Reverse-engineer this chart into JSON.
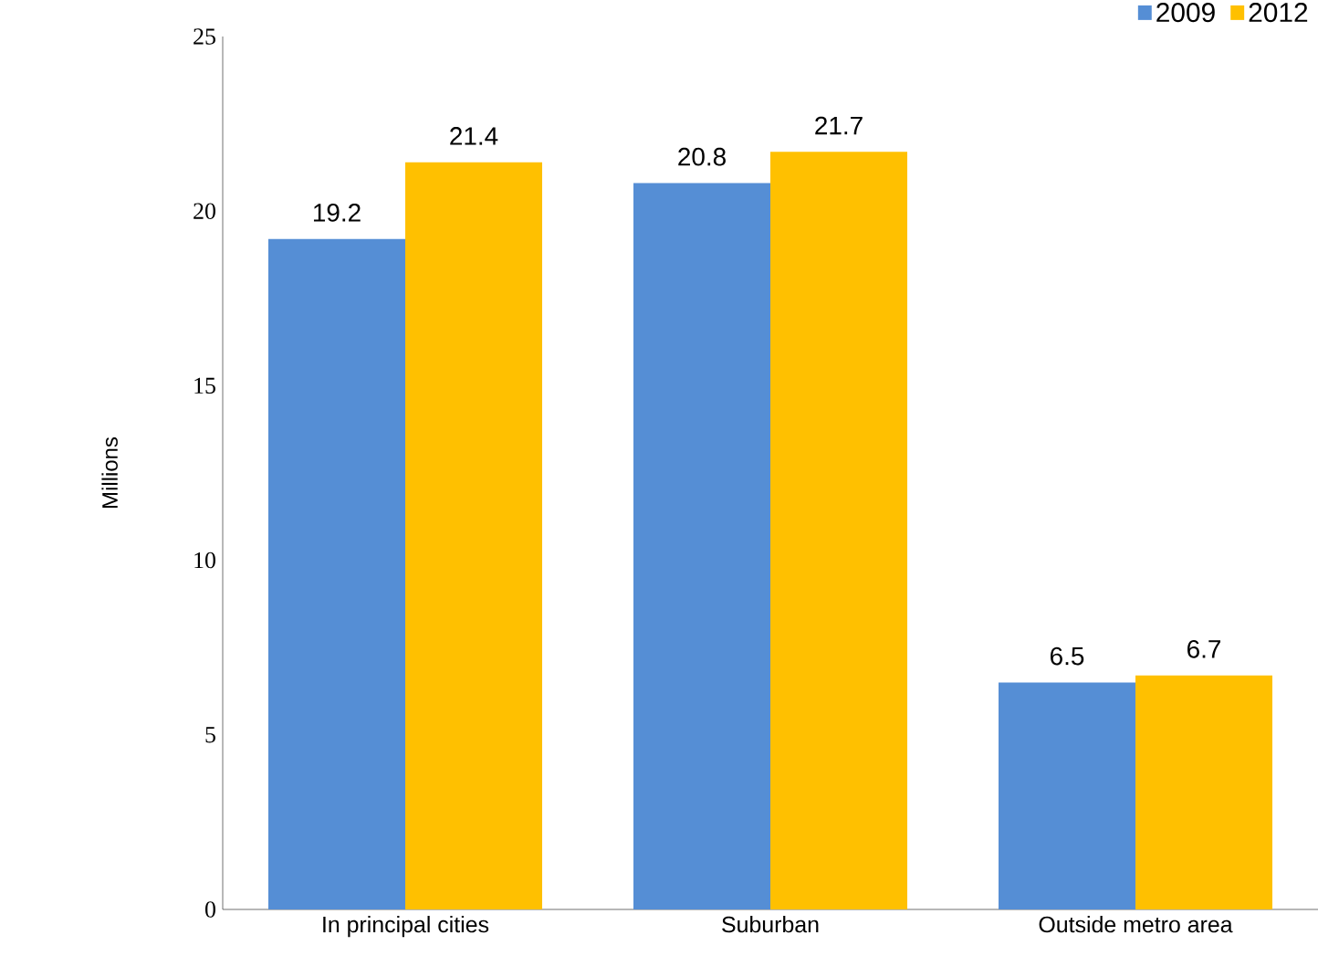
{
  "chart_data": {
    "type": "bar",
    "ylabel": "Millions",
    "categories": [
      "In principal cities",
      "Suburban",
      "Outside metro area"
    ],
    "series": [
      {
        "name": "2009",
        "color": "#558ed5",
        "values": [
          19.2,
          20.8,
          6.5
        ]
      },
      {
        "name": "2012",
        "color": "#ffc000",
        "values": [
          21.4,
          21.7,
          6.7
        ]
      }
    ],
    "ylim": [
      0,
      25
    ],
    "yticks": [
      0,
      5,
      10,
      15,
      20,
      25
    ],
    "data_labels": true,
    "legend": "top right",
    "grid": false
  }
}
